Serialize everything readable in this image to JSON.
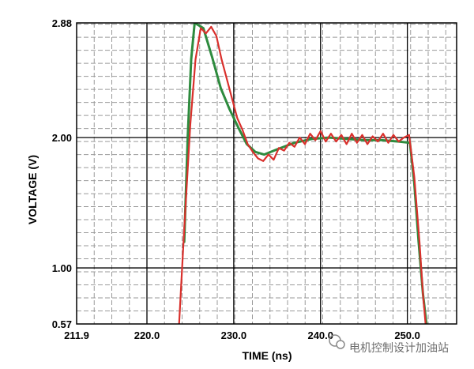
{
  "chart_data": {
    "type": "line",
    "xlabel": "TIME (ns)",
    "ylabel": "VOLTAGE (V)",
    "xlim": [
      211.9,
      252.5
    ],
    "ylim": [
      0.57,
      2.88
    ],
    "x_ticks": [
      211.9,
      220.0,
      230.0,
      240.0,
      250.0
    ],
    "x_tick_labels": [
      "211.9",
      "220.0",
      "230.0",
      "240.0",
      "250.0"
    ],
    "y_ticks": [
      0.57,
      1.0,
      2.0,
      2.88
    ],
    "y_tick_labels": [
      "0.57",
      "1.00",
      "2.00",
      "2.88"
    ],
    "grid": "dashed minor grid, solid major lines at labeled ticks",
    "series": [
      {
        "color": "#2e8b3e",
        "x": [
          224.3,
          224.7,
          225.1,
          225.5,
          226.5,
          227.5,
          228.5,
          229.5,
          230.5,
          231.5,
          232.5,
          233.5,
          235.0,
          237.0,
          239.0,
          241.0,
          243.0,
          245.0,
          247.0,
          249.0,
          250.3,
          250.8,
          251.3,
          251.8,
          252.2
        ],
        "y": [
          1.2,
          2.0,
          2.6,
          2.88,
          2.84,
          2.62,
          2.38,
          2.22,
          2.08,
          1.95,
          1.89,
          1.87,
          1.91,
          1.96,
          1.99,
          2.0,
          1.99,
          1.98,
          1.98,
          1.97,
          1.96,
          1.65,
          1.2,
          0.8,
          0.57
        ]
      },
      {
        "color": "#d9302c",
        "x": [
          223.7,
          224.3,
          225.0,
          225.6,
          226.2,
          226.8,
          227.4,
          228.0,
          228.6,
          229.2,
          229.8,
          230.4,
          231.0,
          231.6,
          232.2,
          232.8,
          233.4,
          234.0,
          234.6,
          235.2,
          235.8,
          236.4,
          237.0,
          237.6,
          238.2,
          238.8,
          239.4,
          240.0,
          240.6,
          241.2,
          241.8,
          242.4,
          243.0,
          243.6,
          244.2,
          244.8,
          245.4,
          246.0,
          246.6,
          247.2,
          247.8,
          248.4,
          249.0,
          249.6,
          250.2,
          250.8,
          251.4,
          251.8,
          252.1
        ],
        "y": [
          0.57,
          1.3,
          2.1,
          2.6,
          2.84,
          2.8,
          2.85,
          2.78,
          2.6,
          2.45,
          2.3,
          2.15,
          2.06,
          1.95,
          1.89,
          1.84,
          1.82,
          1.87,
          1.83,
          1.92,
          1.9,
          1.96,
          1.93,
          2.0,
          1.95,
          2.03,
          1.98,
          2.05,
          1.97,
          2.03,
          1.97,
          2.02,
          1.95,
          2.03,
          1.96,
          2.02,
          1.95,
          2.01,
          1.97,
          2.03,
          1.96,
          2.02,
          1.97,
          2.0,
          2.02,
          1.7,
          1.2,
          0.8,
          0.57
        ]
      }
    ]
  },
  "watermark": {
    "text": "电机控制设计加油站",
    "icon": "wechat-icon"
  }
}
